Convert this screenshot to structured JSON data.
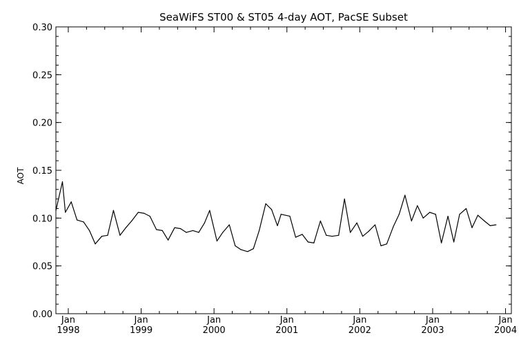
{
  "chart_data": {
    "type": "line",
    "title": "SeaWiFS ST00 & ST05 4-day AOT, PacSE Subset",
    "xlabel": "",
    "ylabel": "AOT",
    "ylim": [
      0.0,
      0.3
    ],
    "xlim": [
      1997.83,
      2004.08
    ],
    "y_ticks": [
      "0.00",
      "0.05",
      "0.10",
      "0.15",
      "0.20",
      "0.25",
      "0.30"
    ],
    "x_ticks": [
      {
        "value": 1998.0,
        "month": "Jan",
        "year": "1998"
      },
      {
        "value": 1999.0,
        "month": "Jan",
        "year": "1999"
      },
      {
        "value": 2000.0,
        "month": "Jan",
        "year": "2000"
      },
      {
        "value": 2001.0,
        "month": "Jan",
        "year": "2001"
      },
      {
        "value": 2002.0,
        "month": "Jan",
        "year": "2002"
      },
      {
        "value": 2003.0,
        "month": "Jan",
        "year": "2003"
      },
      {
        "value": 2004.0,
        "month": "Jan",
        "year": "2004"
      }
    ],
    "grid": false,
    "legend": "none",
    "line_color": "#000000",
    "series": [
      {
        "values": [
          [
            1997.83,
            0.108
          ],
          [
            1997.92,
            0.138
          ],
          [
            1997.96,
            0.106
          ],
          [
            1998.04,
            0.117
          ],
          [
            1998.12,
            0.098
          ],
          [
            1998.21,
            0.096
          ],
          [
            1998.29,
            0.087
          ],
          [
            1998.37,
            0.073
          ],
          [
            1998.46,
            0.081
          ],
          [
            1998.54,
            0.082
          ],
          [
            1998.62,
            0.108
          ],
          [
            1998.71,
            0.082
          ],
          [
            1998.79,
            0.09
          ],
          [
            1998.87,
            0.097
          ],
          [
            1998.96,
            0.106
          ],
          [
            1999.04,
            0.105
          ],
          [
            1999.12,
            0.102
          ],
          [
            1999.21,
            0.088
          ],
          [
            1999.29,
            0.087
          ],
          [
            1999.37,
            0.077
          ],
          [
            1999.46,
            0.09
          ],
          [
            1999.54,
            0.089
          ],
          [
            1999.62,
            0.085
          ],
          [
            1999.71,
            0.087
          ],
          [
            1999.79,
            0.085
          ],
          [
            1999.87,
            0.095
          ],
          [
            1999.94,
            0.108
          ],
          [
            2000.04,
            0.076
          ],
          [
            2000.12,
            0.085
          ],
          [
            2000.21,
            0.093
          ],
          [
            2000.29,
            0.071
          ],
          [
            2000.37,
            0.067
          ],
          [
            2000.46,
            0.065
          ],
          [
            2000.54,
            0.068
          ],
          [
            2000.62,
            0.087
          ],
          [
            2000.71,
            0.115
          ],
          [
            2000.79,
            0.109
          ],
          [
            2000.87,
            0.092
          ],
          [
            2000.92,
            0.104
          ],
          [
            2001.04,
            0.102
          ],
          [
            2001.12,
            0.08
          ],
          [
            2001.21,
            0.083
          ],
          [
            2001.29,
            0.075
          ],
          [
            2001.37,
            0.074
          ],
          [
            2001.46,
            0.097
          ],
          [
            2001.54,
            0.082
          ],
          [
            2001.62,
            0.081
          ],
          [
            2001.71,
            0.082
          ],
          [
            2001.79,
            0.12
          ],
          [
            2001.87,
            0.085
          ],
          [
            2001.96,
            0.095
          ],
          [
            2002.04,
            0.081
          ],
          [
            2002.12,
            0.086
          ],
          [
            2002.21,
            0.093
          ],
          [
            2002.29,
            0.071
          ],
          [
            2002.37,
            0.073
          ],
          [
            2002.46,
            0.091
          ],
          [
            2002.54,
            0.104
          ],
          [
            2002.62,
            0.124
          ],
          [
            2002.71,
            0.097
          ],
          [
            2002.79,
            0.113
          ],
          [
            2002.87,
            0.1
          ],
          [
            2002.96,
            0.106
          ],
          [
            2003.04,
            0.104
          ],
          [
            2003.12,
            0.074
          ],
          [
            2003.21,
            0.102
          ],
          [
            2003.29,
            0.075
          ],
          [
            2003.37,
            0.104
          ],
          [
            2003.46,
            0.11
          ],
          [
            2003.54,
            0.09
          ],
          [
            2003.62,
            0.103
          ],
          [
            2003.71,
            0.097
          ],
          [
            2003.79,
            0.092
          ],
          [
            2003.87,
            0.093
          ]
        ]
      }
    ]
  }
}
